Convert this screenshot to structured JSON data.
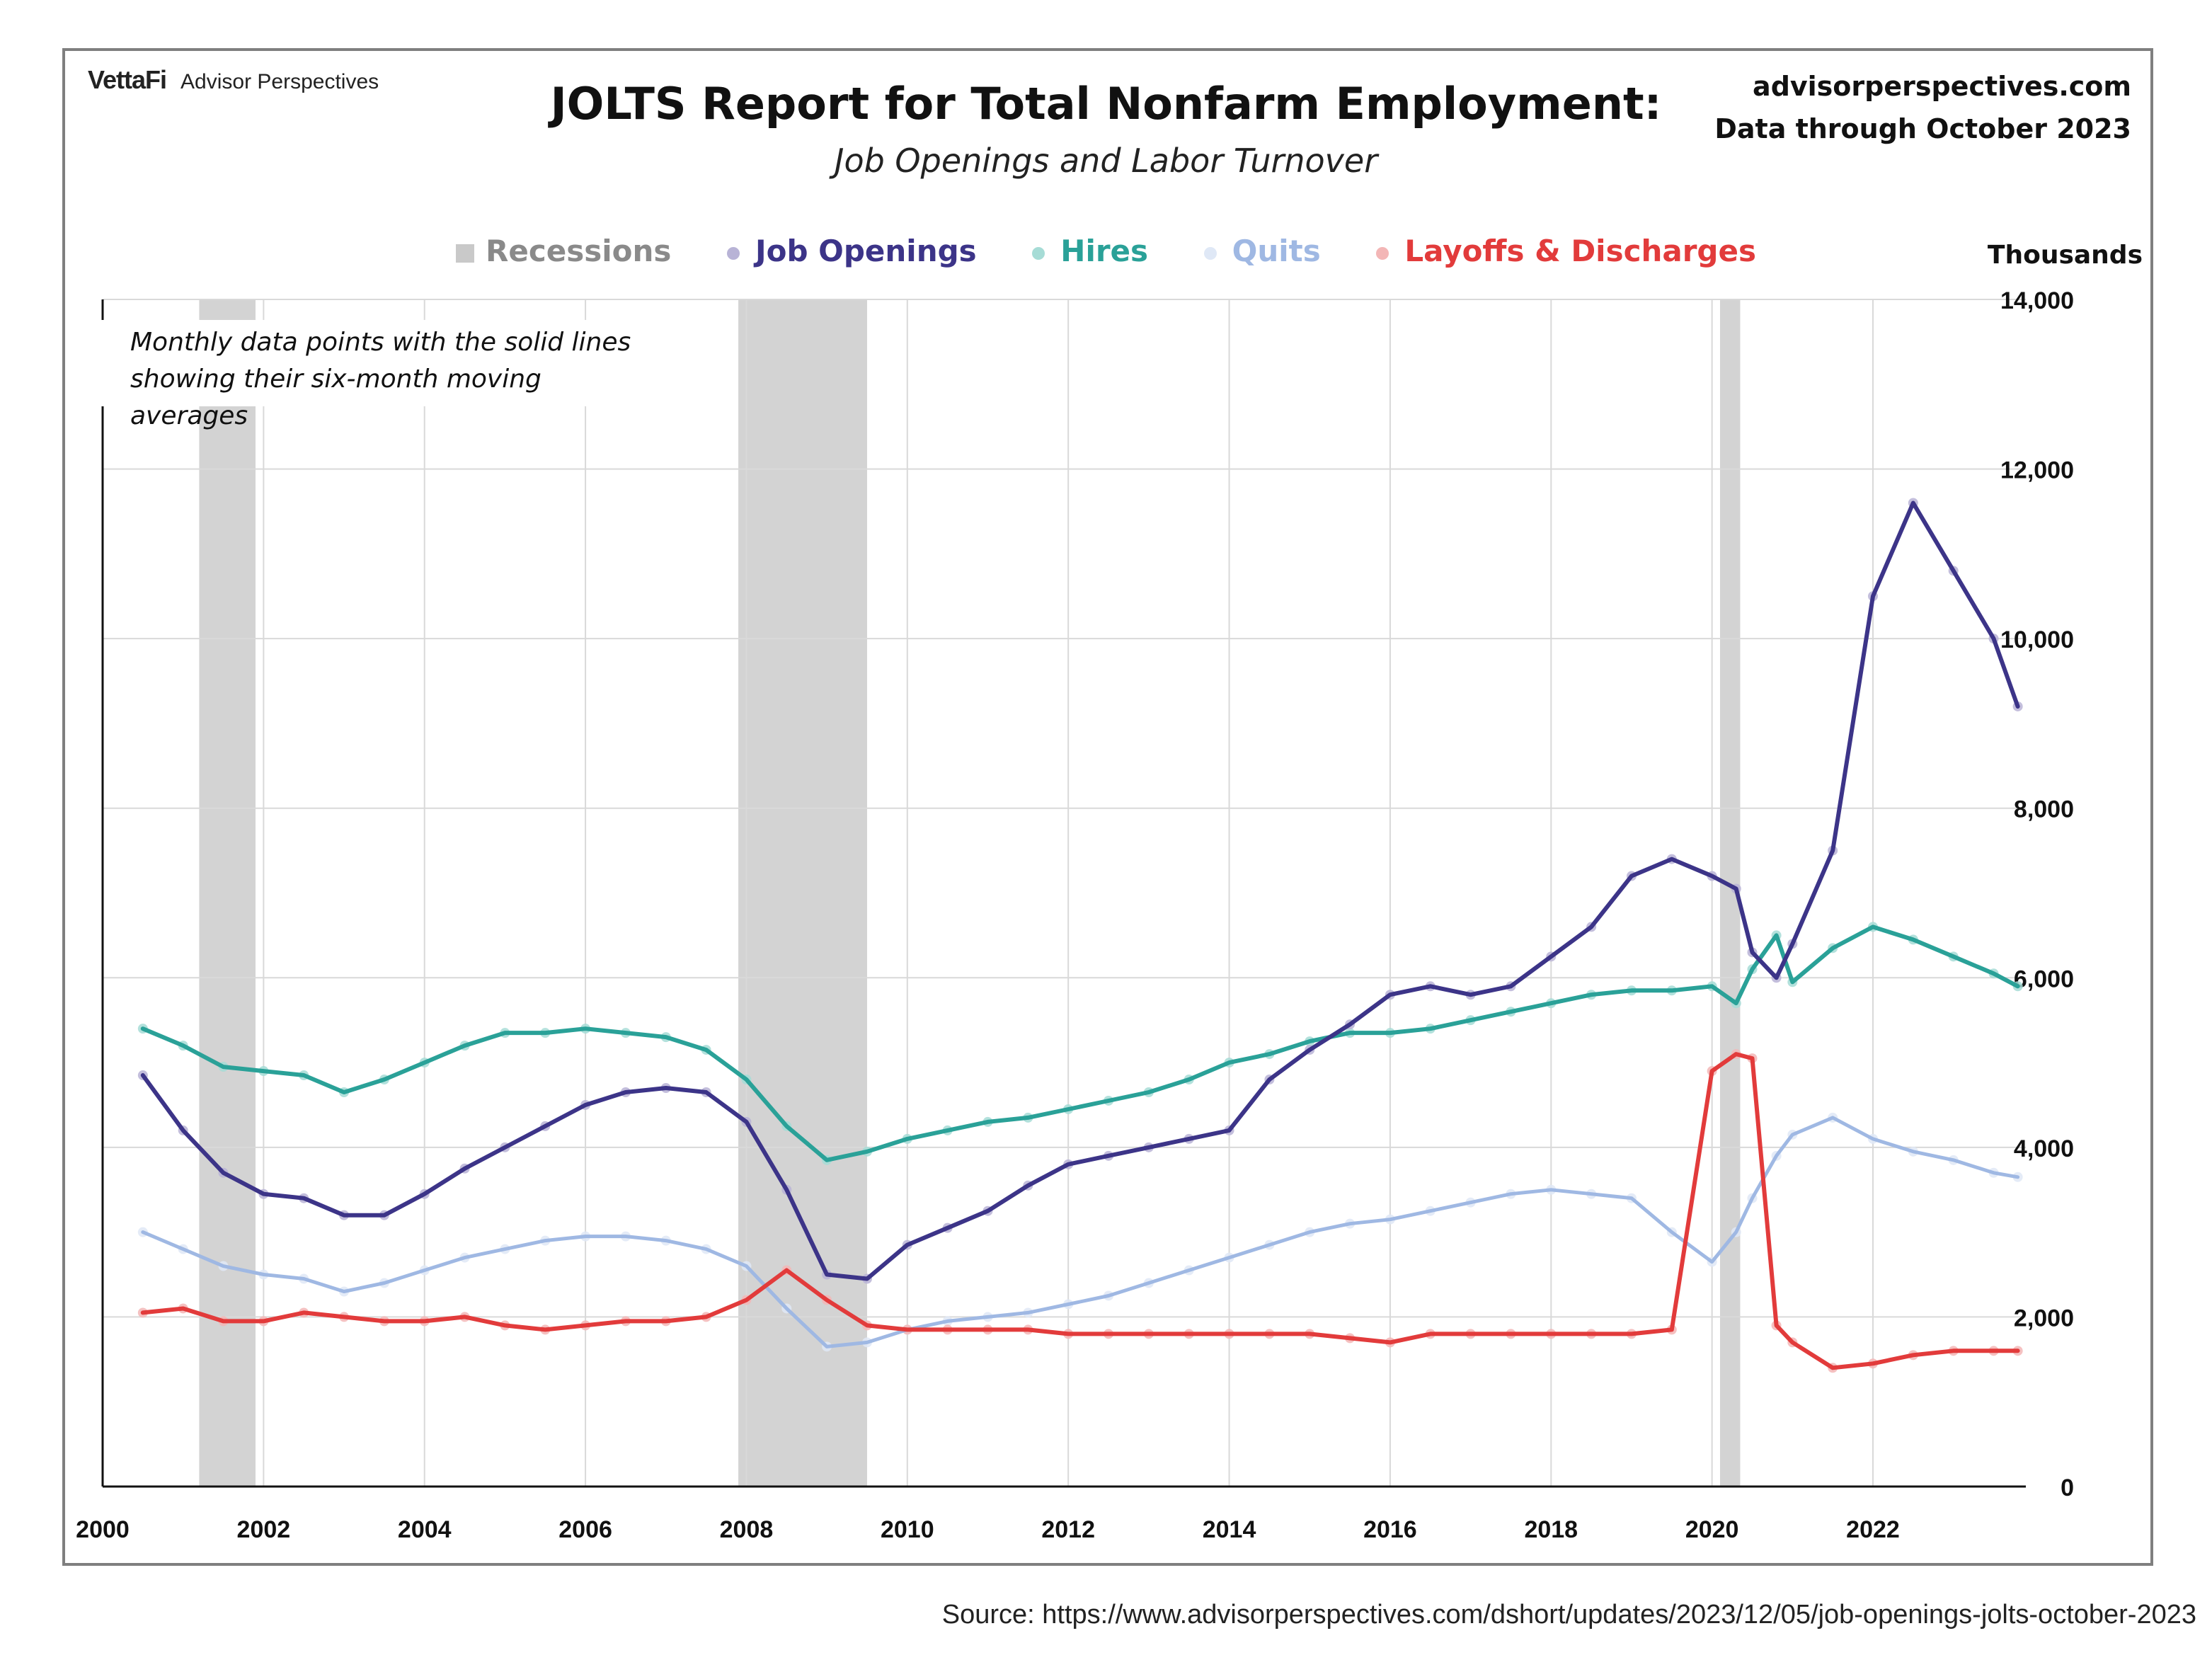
{
  "header": {
    "brand_logo": "VettaFi",
    "brand_name": "Advisor Perspectives",
    "title": "JOLTS Report for Total Nonfarm Employment:",
    "subtitle": "Job Openings and Labor Turnover",
    "site": "advisorperspectives.com",
    "data_through": "Data through October 2023"
  },
  "legend": {
    "recessions": "Recessions",
    "job_openings": "Job Openings",
    "hires": "Hires",
    "quits": "Quits",
    "layoffs": "Layoffs & Discharges"
  },
  "note_line1": "Monthly data points with the solid lines",
  "note_line2": "showing their six-month moving averages",
  "units": "Thousands",
  "source": "Source: https://www.advisorperspectives.com/dshort/updates/2023/12/05/job-openings-jolts-october-2023",
  "colors": {
    "recession": "#d3d3d3",
    "job_openings": "#3c3488",
    "hires": "#2aa198",
    "quits": "#9fb8e3",
    "layoffs": "#e23b3b",
    "grid": "#d9d9d9"
  },
  "chart_data": {
    "type": "line",
    "title": "JOLTS Report for Total Nonfarm Employment:",
    "subtitle": "Job Openings and Labor Turnover",
    "ylabel": "Thousands",
    "ylim": [
      0,
      14000
    ],
    "xlim": [
      2000,
      2023.9
    ],
    "x_ticks": [
      "2000",
      "2002",
      "2004",
      "2006",
      "2008",
      "2010",
      "2012",
      "2014",
      "2016",
      "2018",
      "2020",
      "2022"
    ],
    "y_ticks": [
      "0",
      "2,000",
      "4,000",
      "6,000",
      "8,000",
      "10,000",
      "12,000",
      "14,000"
    ],
    "grid": true,
    "legend_position": "top",
    "recessions": [
      [
        2001.2,
        2001.9
      ],
      [
        2007.9,
        2009.5
      ],
      [
        2020.1,
        2020.35
      ]
    ],
    "x": [
      2000.5,
      2001.0,
      2001.5,
      2002.0,
      2002.5,
      2003.0,
      2003.5,
      2004.0,
      2004.5,
      2005.0,
      2005.5,
      2006.0,
      2006.5,
      2007.0,
      2007.5,
      2008.0,
      2008.5,
      2009.0,
      2009.5,
      2010.0,
      2010.5,
      2011.0,
      2011.5,
      2012.0,
      2012.5,
      2013.0,
      2013.5,
      2014.0,
      2014.5,
      2015.0,
      2015.5,
      2016.0,
      2016.5,
      2017.0,
      2017.5,
      2018.0,
      2018.5,
      2019.0,
      2019.5,
      2020.0,
      2020.3,
      2020.5,
      2020.8,
      2021.0,
      2021.5,
      2022.0,
      2022.5,
      2023.0,
      2023.5,
      2023.8
    ],
    "series": [
      {
        "name": "Job Openings",
        "color": "#3c3488",
        "values": [
          4850,
          4200,
          3700,
          3450,
          3400,
          3200,
          3200,
          3450,
          3750,
          4000,
          4250,
          4500,
          4650,
          4700,
          4650,
          4300,
          3500,
          2500,
          2450,
          2850,
          3050,
          3250,
          3550,
          3800,
          3900,
          4000,
          4100,
          4200,
          4800,
          5150,
          5450,
          5800,
          5900,
          5800,
          5900,
          6250,
          6600,
          7200,
          7400,
          7200,
          7050,
          6300,
          6000,
          6400,
          7500,
          10500,
          11600,
          10800,
          10000,
          9200
        ]
      },
      {
        "name": "Hires",
        "color": "#2aa198",
        "values": [
          5400,
          5200,
          4950,
          4900,
          4850,
          4650,
          4800,
          5000,
          5200,
          5350,
          5350,
          5400,
          5350,
          5300,
          5150,
          4800,
          4250,
          3850,
          3950,
          4100,
          4200,
          4300,
          4350,
          4450,
          4550,
          4650,
          4800,
          5000,
          5100,
          5250,
          5350,
          5350,
          5400,
          5500,
          5600,
          5700,
          5800,
          5850,
          5850,
          5900,
          5700,
          6100,
          6500,
          5950,
          6350,
          6600,
          6450,
          6250,
          6050,
          5900
        ]
      },
      {
        "name": "Quits",
        "color": "#9fb8e3",
        "values": [
          3000,
          2800,
          2600,
          2500,
          2450,
          2300,
          2400,
          2550,
          2700,
          2800,
          2900,
          2950,
          2950,
          2900,
          2800,
          2600,
          2100,
          1650,
          1700,
          1850,
          1950,
          2000,
          2050,
          2150,
          2250,
          2400,
          2550,
          2700,
          2850,
          3000,
          3100,
          3150,
          3250,
          3350,
          3450,
          3500,
          3450,
          3400,
          3000,
          2650,
          3000,
          3400,
          3900,
          4150,
          4350,
          4100,
          3950,
          3850,
          3700,
          3650
        ]
      },
      {
        "name": "Layoffs & Discharges",
        "color": "#e23b3b",
        "values": [
          2050,
          2100,
          1950,
          1950,
          2050,
          2000,
          1950,
          1950,
          2000,
          1900,
          1850,
          1900,
          1950,
          1950,
          2000,
          2200,
          2550,
          2200,
          1900,
          1850,
          1850,
          1850,
          1850,
          1800,
          1800,
          1800,
          1800,
          1800,
          1800,
          1800,
          1750,
          1700,
          1800,
          1800,
          1800,
          1800,
          1800,
          1800,
          1850,
          4900,
          5100,
          5050,
          1900,
          1700,
          1400,
          1450,
          1550,
          1600,
          1600,
          1600
        ]
      }
    ]
  }
}
